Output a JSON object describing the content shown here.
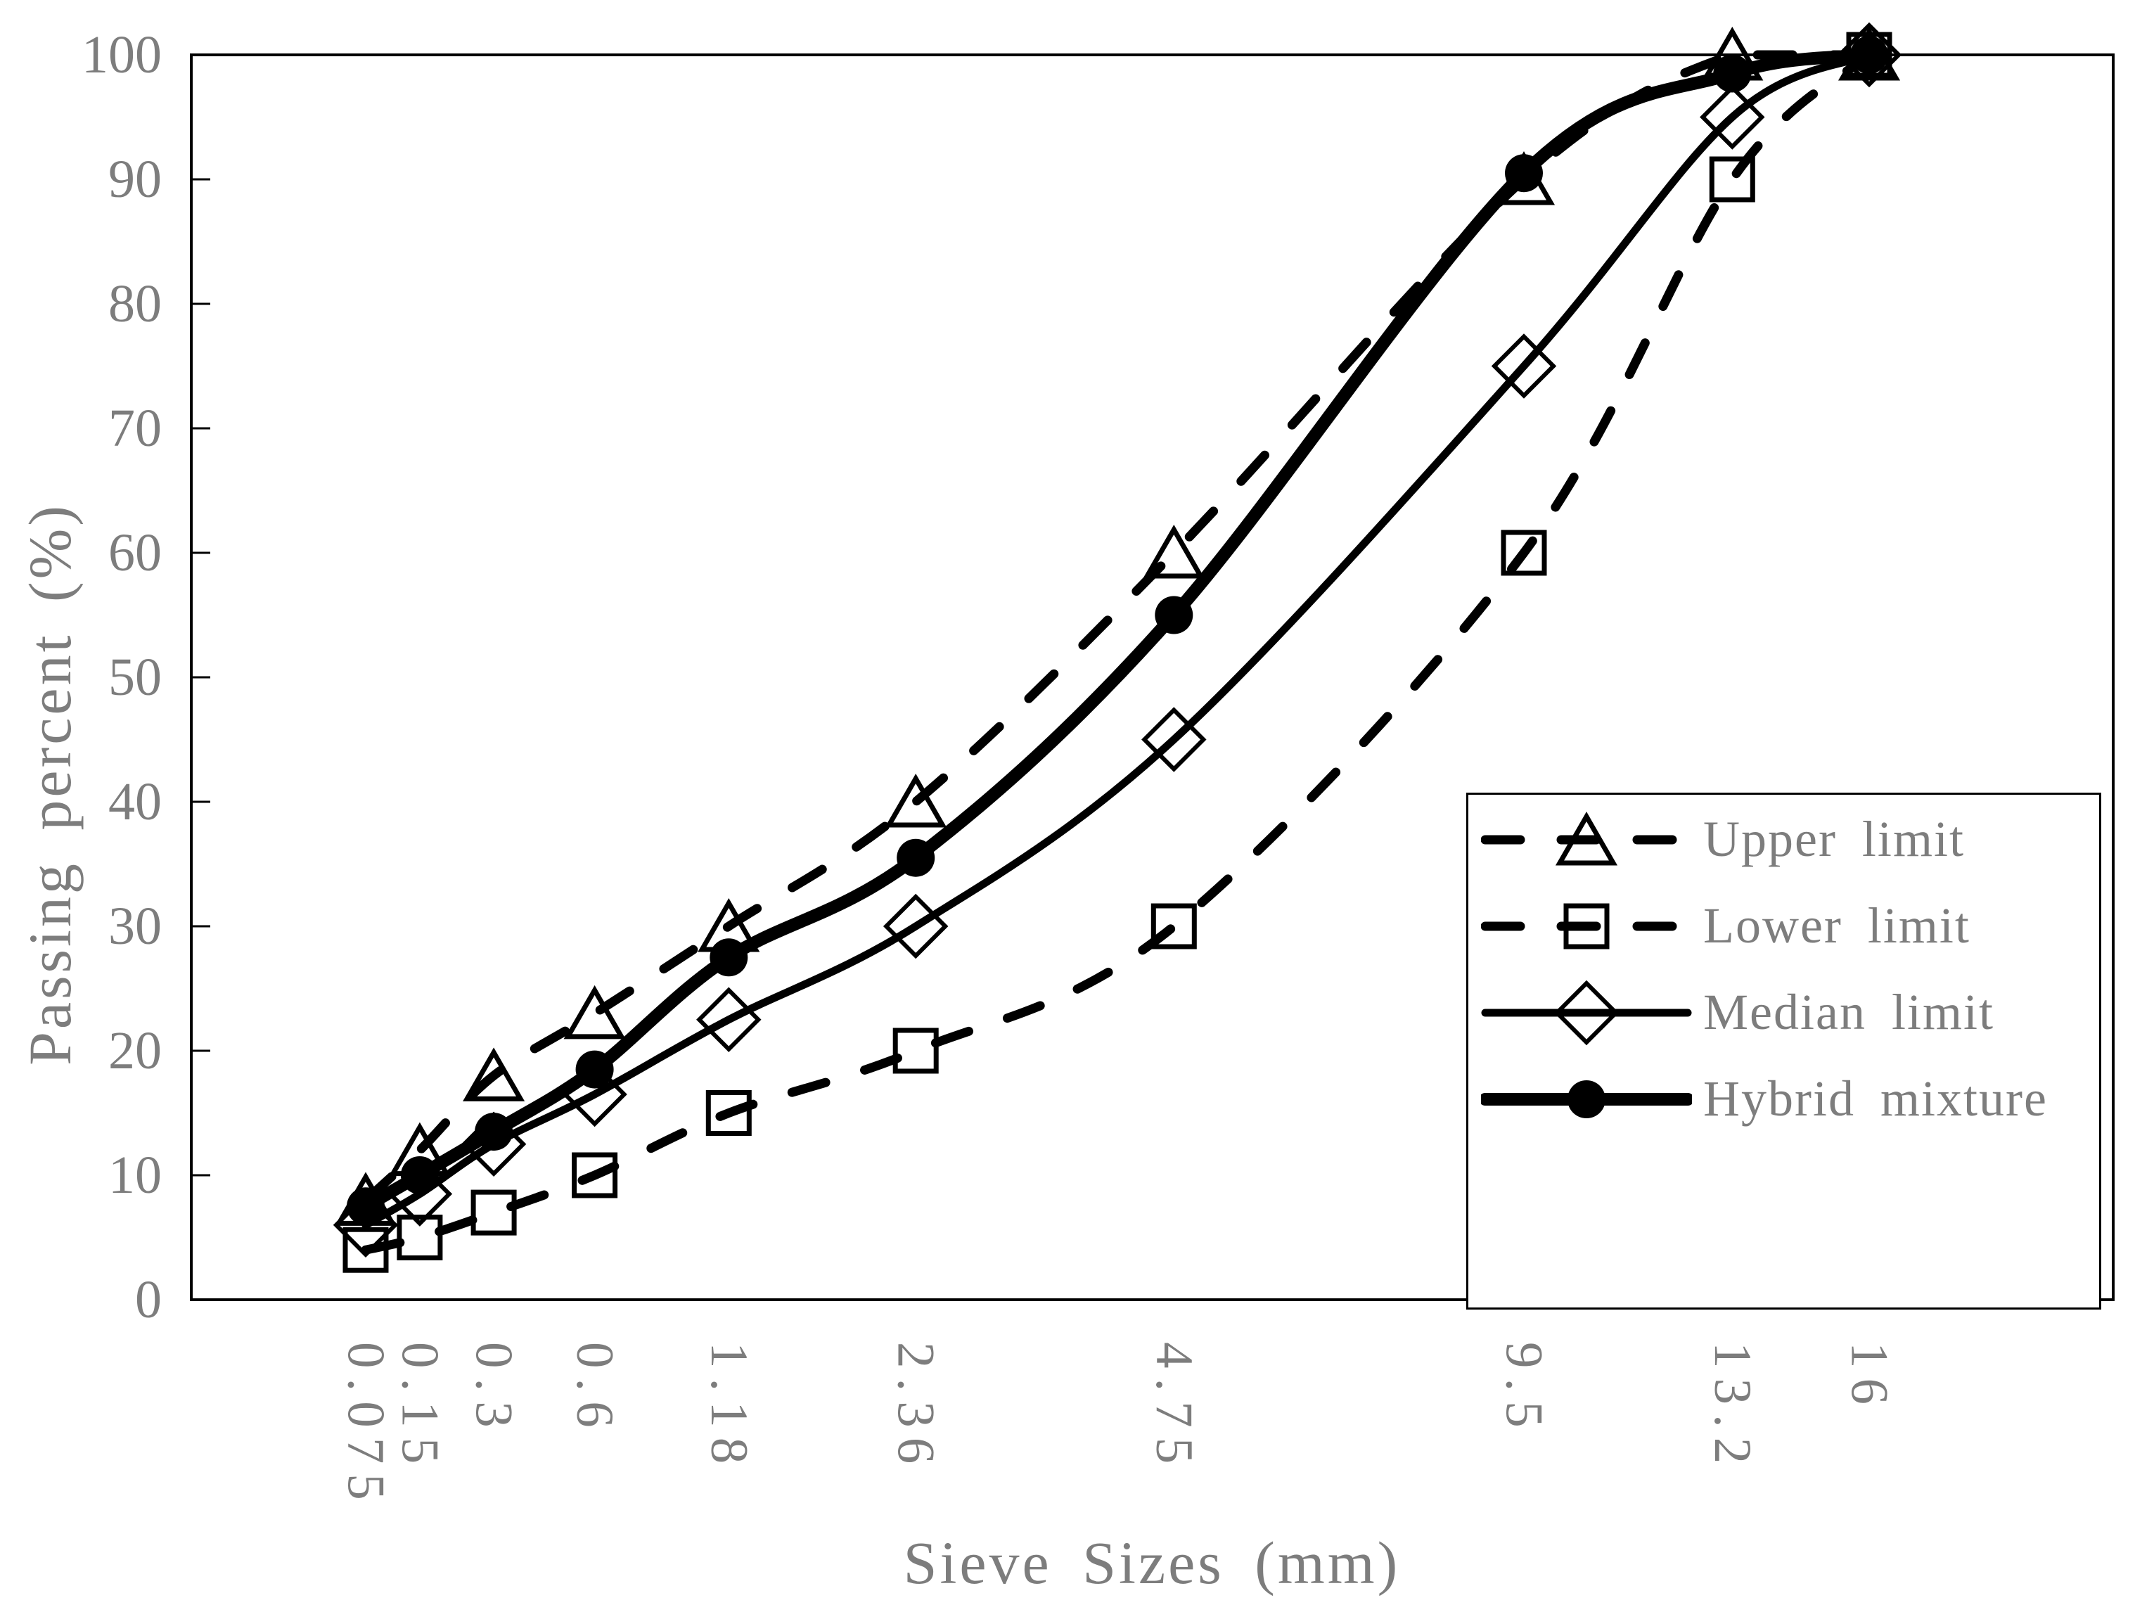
{
  "chart_data": {
    "type": "line",
    "title": "",
    "xlabel": "Sieve Sizes (mm)",
    "ylabel": "Passing percent (%)",
    "x_scale": "0.45-power gradation scale",
    "categories": [
      "0.075",
      "0.15",
      "0.3",
      "0.6",
      "1.18",
      "2.36",
      "4.75",
      "9.5",
      "13.2",
      "16"
    ],
    "x_values": [
      0.075,
      0.15,
      0.3,
      0.6,
      1.18,
      2.36,
      4.75,
      9.5,
      13.2,
      16
    ],
    "ylim": [
      0,
      100
    ],
    "y_ticks": [
      0,
      10,
      20,
      30,
      40,
      50,
      60,
      70,
      80,
      90,
      100
    ],
    "grid": false,
    "legend_position": "inside bottom-right",
    "series": [
      {
        "name": "Upper limit",
        "line": "dashed",
        "marker": "open-triangle",
        "stroke_width": 13,
        "values": [
          8,
          12,
          18,
          23,
          30,
          40,
          60,
          90,
          100,
          100
        ]
      },
      {
        "name": "Lower limit",
        "line": "dashed",
        "marker": "open-square",
        "stroke_width": 13,
        "values": [
          4,
          5,
          7,
          10,
          15,
          20,
          30,
          60,
          90,
          100
        ]
      },
      {
        "name": "Median limit",
        "line": "solid",
        "marker": "open-diamond",
        "stroke_width": 11,
        "values": [
          6,
          8.5,
          12.5,
          16.5,
          22.5,
          30,
          45,
          75,
          95,
          100
        ]
      },
      {
        "name": "Hybrid mixture",
        "line": "solid",
        "marker": "filled-circle",
        "stroke_width": 18,
        "values": [
          7.5,
          10,
          13.5,
          18.5,
          27.5,
          35.5,
          55,
          90.5,
          98.5,
          100
        ]
      }
    ]
  },
  "colors": {
    "series_line": "#000000",
    "label_text": "#7d7d7d",
    "background": "#ffffff",
    "legend_border": "#000000"
  }
}
